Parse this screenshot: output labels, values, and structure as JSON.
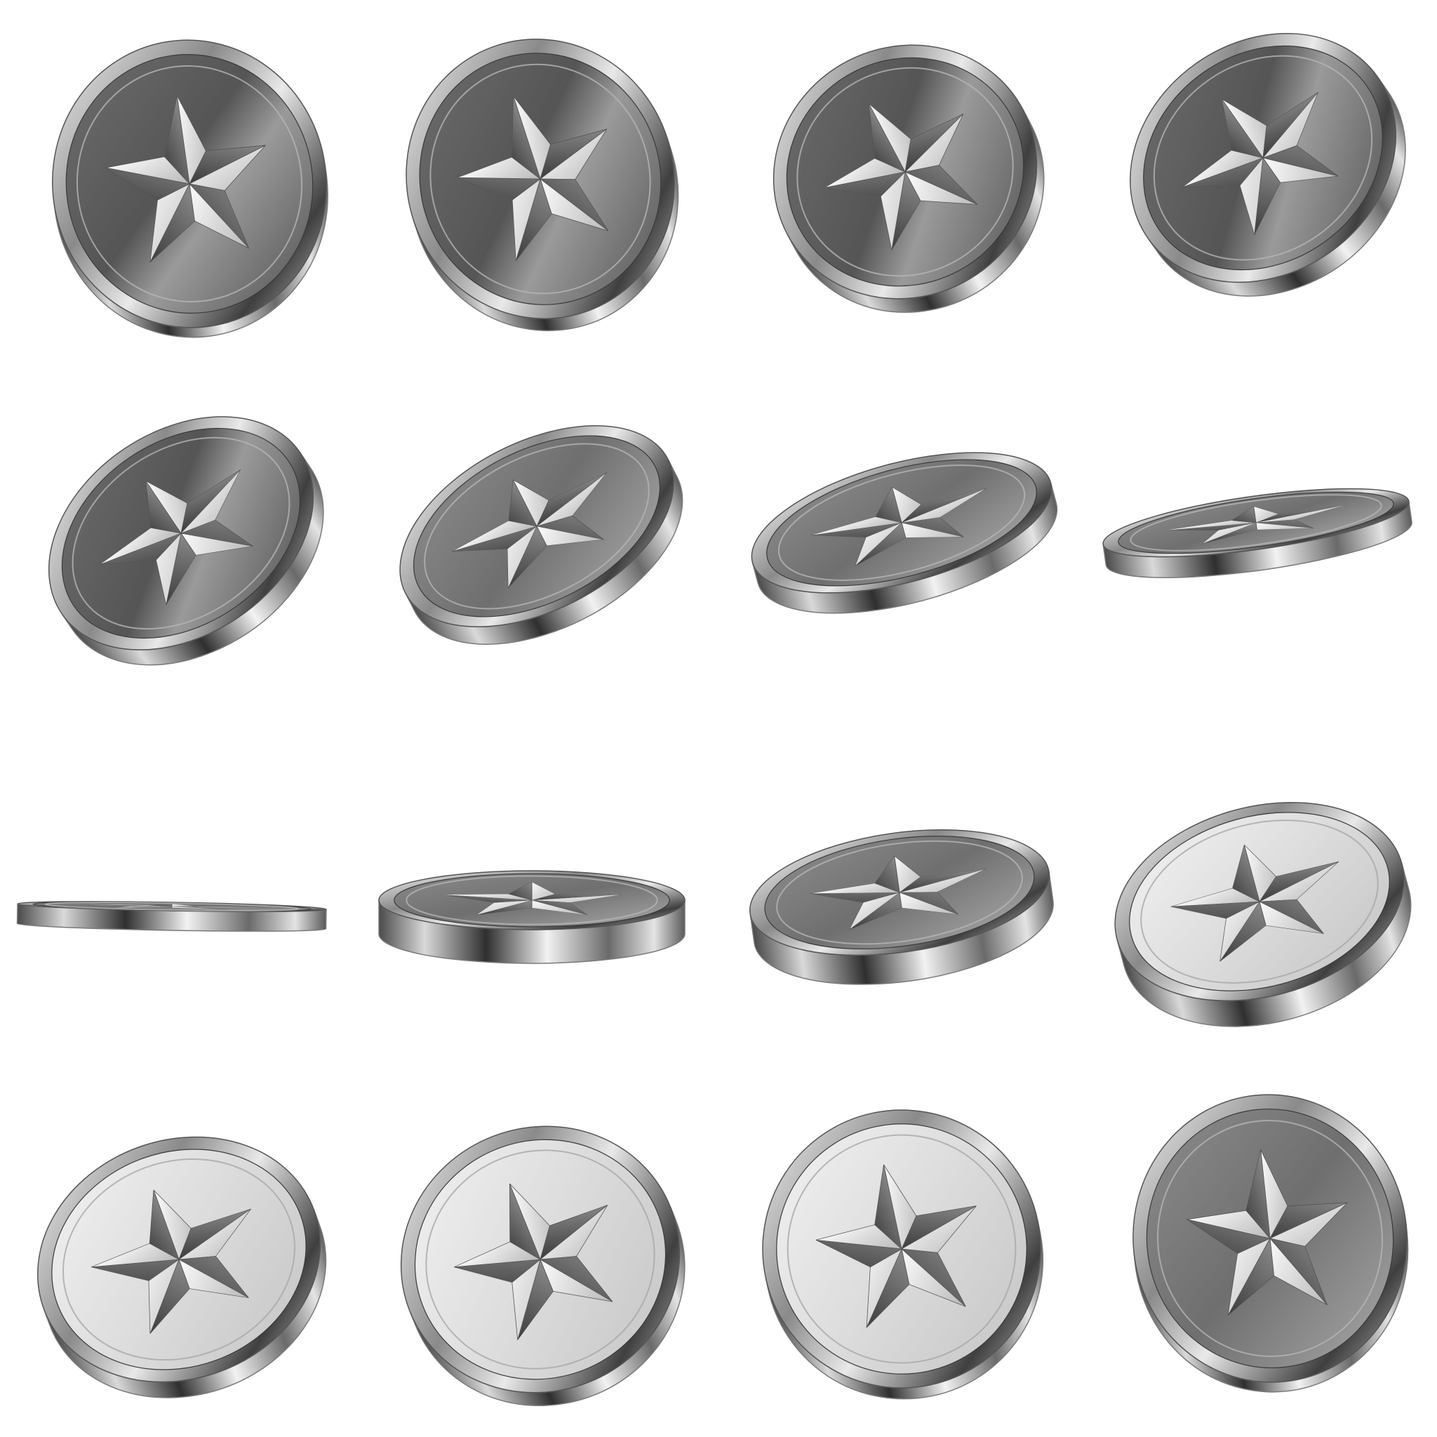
{
  "sheet": {
    "background": "#ffffff",
    "subject": "coin",
    "emblem": "star-icon",
    "rows": 4,
    "columns": 4
  },
  "coins": [
    {
      "state": "tilted",
      "face": "obverse"
    },
    {
      "state": "tilted",
      "face": "obverse"
    },
    {
      "state": "tilted",
      "face": "obverse"
    },
    {
      "state": "tilted",
      "face": "obverse"
    },
    {
      "state": "tilted",
      "face": "obverse"
    },
    {
      "state": "tilted",
      "face": "obverse"
    },
    {
      "state": "tilted",
      "face": "obverse"
    },
    {
      "state": "edge-on",
      "face": "obverse"
    },
    {
      "state": "edge-on",
      "face": "edge"
    },
    {
      "state": "tilted",
      "face": "obverse"
    },
    {
      "state": "tilted",
      "face": "obverse"
    },
    {
      "state": "tilted",
      "face": "obverse"
    },
    {
      "state": "tilted",
      "face": "obverse"
    },
    {
      "state": "tilted",
      "face": "obverse"
    },
    {
      "state": "tilted",
      "face": "obverse"
    },
    {
      "state": "tilted",
      "face": "obverse"
    }
  ],
  "palette": {
    "rim_light": "#f4f4f4",
    "rim_dark": "#3a3a3a",
    "face_dark": "#5c5c5c",
    "face_light": "#e6e6e6",
    "star_light": "#fafafa",
    "star_dark": "#4a4a4a"
  }
}
